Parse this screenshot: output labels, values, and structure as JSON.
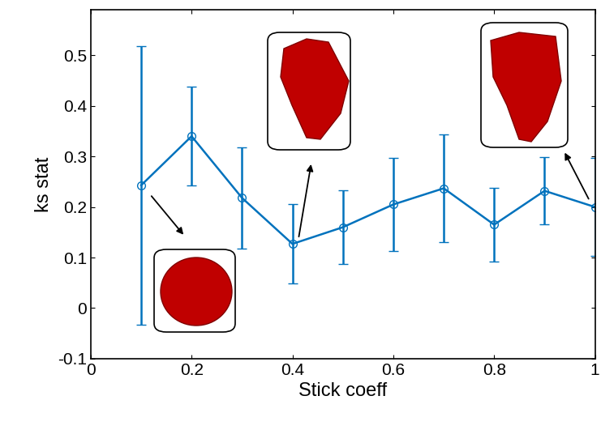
{
  "chart_data": {
    "type": "line",
    "x_label": "Stick coeff",
    "y_label": "ks stat",
    "x": [
      0.1,
      0.2,
      0.3,
      0.4,
      0.5,
      0.6,
      0.7,
      0.8,
      0.9,
      1.0
    ],
    "values": [
      0.243,
      0.34,
      0.218,
      0.127,
      0.16,
      0.205,
      0.237,
      0.165,
      0.232,
      0.2
    ],
    "errors": [
      0.276,
      0.098,
      0.1,
      0.078,
      0.073,
      0.092,
      0.106,
      0.073,
      0.067,
      0.097
    ],
    "color": "#0072bd",
    "marker": "o",
    "line_style": "solid",
    "xlim": [
      0,
      1
    ],
    "xticks": [
      0,
      0.2,
      0.4,
      0.6,
      0.8,
      1
    ],
    "ylim": [
      -0.1,
      0.59
    ],
    "yticks": [
      -0.1,
      0,
      0.1,
      0.2,
      0.3,
      0.4,
      0.5
    ],
    "grid": false
  }
}
